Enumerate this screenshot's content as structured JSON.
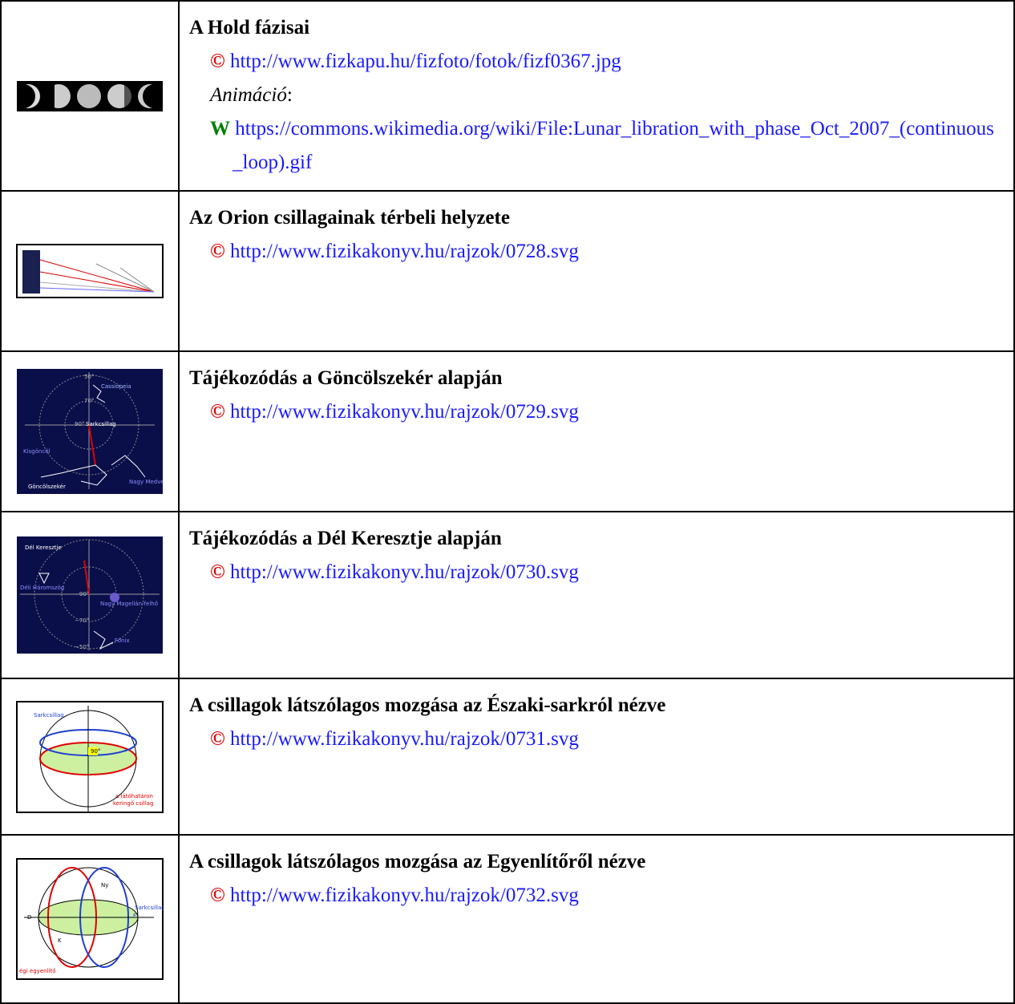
{
  "rows": [
    {
      "title": "A Hold fázisai",
      "lines": [
        {
          "symbol": "©",
          "url": "http://www.fizkapu.hu/fizfoto/fotok/fizf0367.jpg"
        },
        {
          "note": "Animáció",
          "suffix": ":"
        },
        {
          "symbol": "W",
          "url": "https://commons.wikimedia.org/wiki/File:Lunar_libration_with_phase_Oct_2007_(continuous_loop).gif"
        }
      ]
    },
    {
      "title": "Az Orion csillagainak térbeli helyzete",
      "lines": [
        {
          "symbol": "©",
          "url": "http://www.fizikakonyv.hu/rajzok/0728.svg"
        }
      ]
    },
    {
      "title": "Tájékozódás a Göncölszekér alapján",
      "lines": [
        {
          "symbol": "©",
          "url": "http://www.fizikakonyv.hu/rajzok/0729.svg"
        }
      ],
      "thumbnail_labels": [
        "Cassiopeia",
        "Sarkcsillag",
        "Kisgöncöl",
        "Göncölszekér",
        "Nagy Medve",
        "50°",
        "70°",
        "90°"
      ]
    },
    {
      "title": "Tájékozódás a Dél Keresztje alapján",
      "lines": [
        {
          "symbol": "©",
          "url": "http://www.fizikakonyv.hu/rajzok/0730.svg"
        }
      ],
      "thumbnail_labels": [
        "Dél Keresztje",
        "Déli Háromszög",
        "Nagy Magellán-felhő",
        "Főnix",
        "−90°",
        "−70°",
        "−50°"
      ]
    },
    {
      "title": "A csillagok látszólagos mozgása az Északi-sarkról nézve",
      "lines": [
        {
          "symbol": "©",
          "url": "http://www.fizikakonyv.hu/rajzok/0731.svg"
        }
      ],
      "thumbnail_labels": [
        "Sarkcsillag",
        "90°",
        "a látóhatáron",
        "keringő csillag"
      ]
    },
    {
      "title": "A csillagok látszólagos mozgása az Egyenlítőről nézve",
      "lines": [
        {
          "symbol": "©",
          "url": "http://www.fizikakonyv.hu/rajzok/0732.svg"
        }
      ],
      "thumbnail_labels": [
        "Sarkcsillag",
        "Ny",
        "K",
        "É",
        "D",
        "égi egyenlítő"
      ]
    }
  ]
}
